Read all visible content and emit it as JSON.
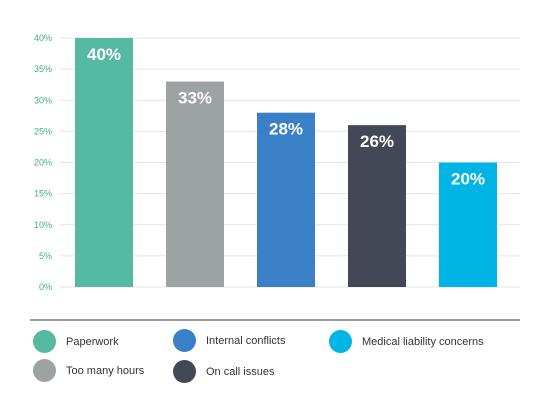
{
  "chart_data": {
    "type": "bar",
    "categories": [
      "Paperwork",
      "Too many hours",
      "Internal conflicts",
      "On call issues",
      "Medical liability concerns"
    ],
    "values": [
      40,
      33,
      28,
      26,
      20
    ],
    "value_labels": [
      "40%",
      "33%",
      "28%",
      "26%",
      "20%"
    ],
    "colors": [
      "#56b9a1",
      "#9da2a2",
      "#3a80c6",
      "#434857",
      "#00b4e6"
    ],
    "ylim": [
      0,
      40
    ],
    "yticks": [
      0,
      5,
      10,
      15,
      20,
      25,
      30,
      35,
      40
    ],
    "ytick_labels": [
      "0%",
      "5%",
      "10%",
      "15%",
      "20%",
      "25%",
      "30%",
      "35%",
      "40%"
    ],
    "grid": true,
    "legend_position": "bottom",
    "title": "",
    "xlabel": "",
    "ylabel": ""
  },
  "legend": {
    "items": [
      {
        "label": "Paperwork",
        "color": "#56b9a1"
      },
      {
        "label": "Internal conflicts",
        "color": "#3a80c6"
      },
      {
        "label": "Medical liability concerns",
        "color": "#00b4e6"
      },
      {
        "label": "Too many hours",
        "color": "#9da2a2"
      },
      {
        "label": "On call issues",
        "color": "#434857"
      }
    ]
  }
}
